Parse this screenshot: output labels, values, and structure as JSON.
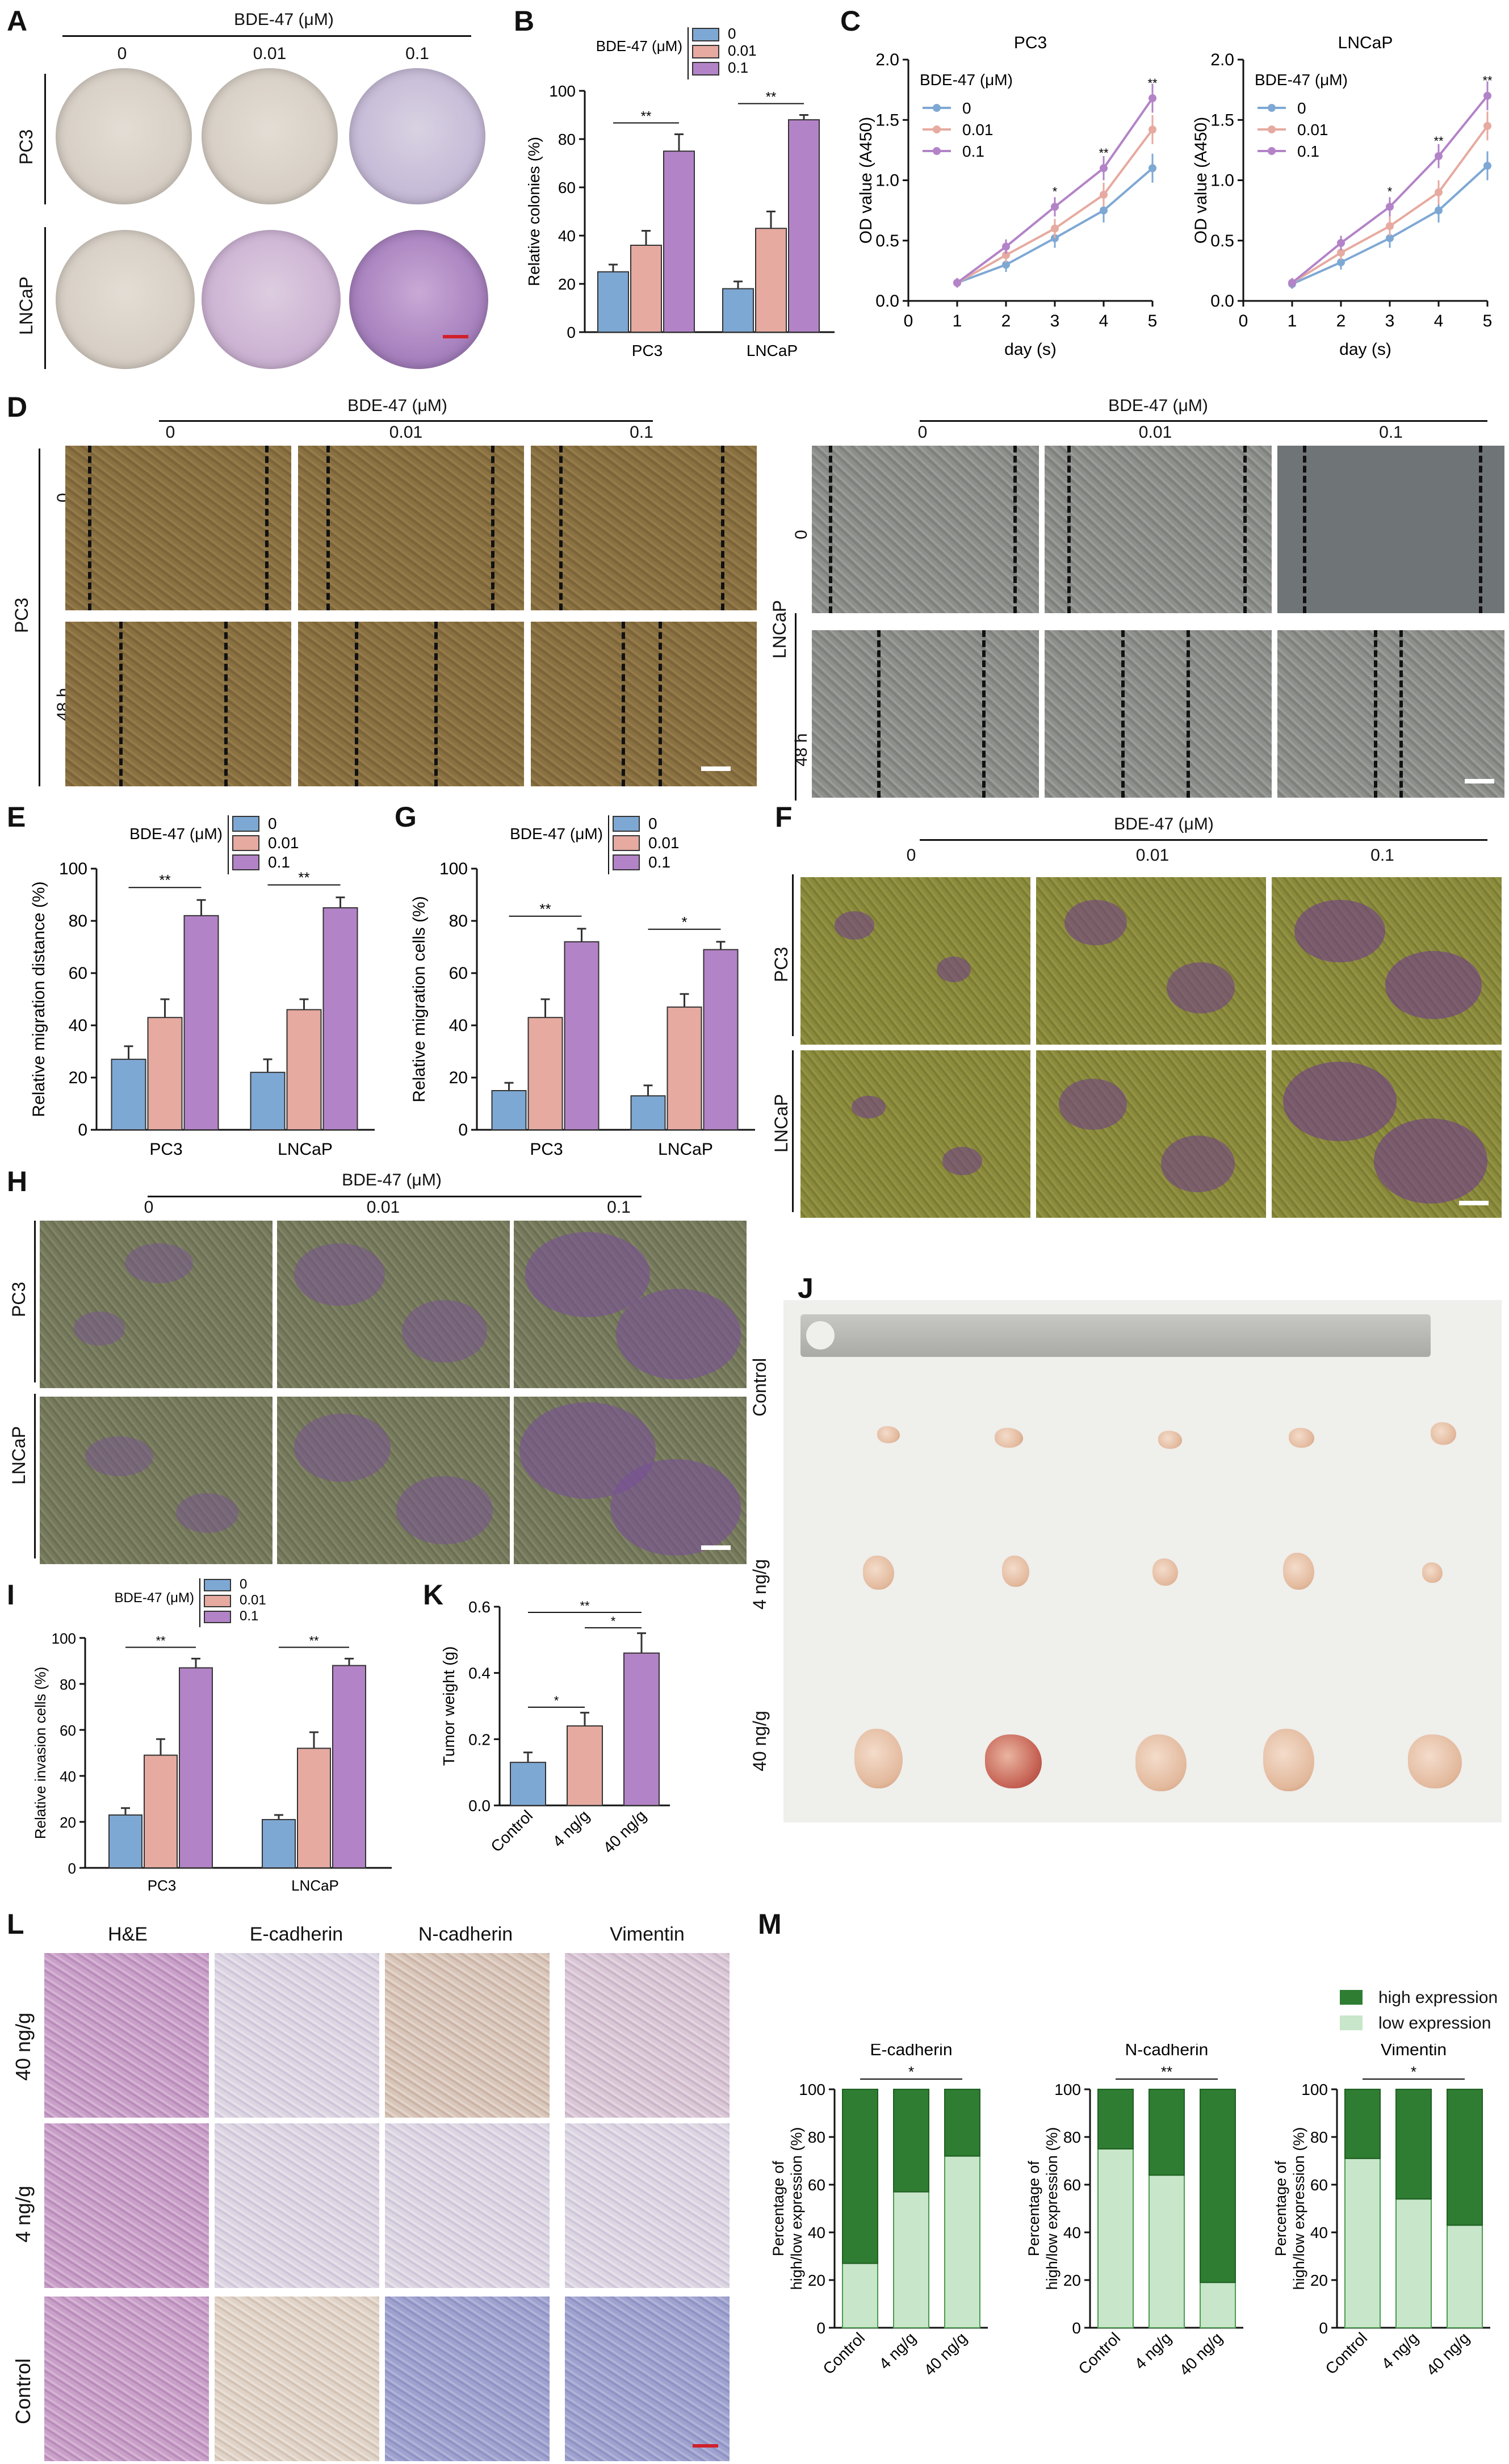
{
  "panels": {
    "A": {
      "letter": "A",
      "header": "BDE-47 (μM)",
      "conc": [
        "0",
        "0.01",
        "0.1"
      ],
      "rows": [
        "PC3",
        "LNCaP"
      ]
    },
    "B": {
      "letter": "B",
      "legend_title": "BDE-47 (μM)",
      "legend": [
        "0",
        "0.01",
        "0.1"
      ],
      "ylabel": "Relative colonies (%)",
      "sig": [
        "**",
        "**"
      ]
    },
    "C": {
      "letter": "C",
      "titles": [
        "PC3",
        "LNCaP"
      ],
      "legend_title": "BDE-47 (μM)",
      "legend": [
        "0",
        "0.01",
        "0.1"
      ],
      "ylabel": "OD value (A450)",
      "xlabel": "day (s)"
    },
    "D": {
      "letter": "D",
      "header": "BDE-47 (μM)",
      "conc": [
        "0",
        "0.01",
        "0.1"
      ],
      "left_row": "PC3",
      "right_row": "LNCaP",
      "times": [
        "0",
        "48 h"
      ]
    },
    "E": {
      "letter": "E",
      "legend_title": "BDE-47 (μM)",
      "legend": [
        "0",
        "0.01",
        "0.1"
      ],
      "ylabel": "Relative migration distance (%)",
      "sig": [
        "**",
        "**"
      ]
    },
    "G": {
      "letter": "G",
      "legend_title": "BDE-47 (μM)",
      "legend": [
        "0",
        "0.01",
        "0.1"
      ],
      "ylabel": "Relative migration cells (%)",
      "sig": [
        "**",
        "*"
      ]
    },
    "F": {
      "letter": "F",
      "header": "BDE-47 (μM)",
      "conc": [
        "0",
        "0.01",
        "0.1"
      ],
      "rows": [
        "PC3",
        "LNCaP"
      ]
    },
    "H": {
      "letter": "H",
      "header": "BDE-47 (μM)",
      "conc": [
        "0",
        "0.01",
        "0.1"
      ],
      "rows": [
        "PC3",
        "LNCaP"
      ]
    },
    "I": {
      "letter": "I",
      "legend_title": "BDE-47 (μM)",
      "legend": [
        "0",
        "0.01",
        "0.1"
      ],
      "ylabel": "Relative invasion cells (%)",
      "sig": [
        "**",
        "**"
      ]
    },
    "K": {
      "letter": "K",
      "ylabel": "Tumor weight (g)",
      "sig": [
        "**",
        "*",
        "*"
      ]
    },
    "J": {
      "letter": "J",
      "rows": [
        "Control",
        "4 ng/g",
        "40 ng/g"
      ]
    },
    "L": {
      "letter": "L",
      "cols": [
        "H&E",
        "E-cadherin",
        "N-cadherin",
        "Vimentin"
      ],
      "rows": [
        "40 ng/g",
        "4 ng/g",
        "Control"
      ]
    },
    "M": {
      "letter": "M",
      "legend": [
        "high expression",
        "low expression"
      ],
      "titles": [
        "E-cadherin",
        "N-cadherin",
        "Vimentin"
      ],
      "ylabel": "Percentage of high/low expression (%)",
      "sig": [
        "*",
        "**",
        "*"
      ]
    }
  },
  "colors": {
    "c0": "#7ea8d4",
    "c1": "#e6aaa0",
    "c2": "#b383c7",
    "high": "#2e7d32",
    "low": "#c8e6c9"
  },
  "chart_data": [
    {
      "id": "B",
      "type": "bar",
      "categories": [
        "PC3",
        "LNCaP"
      ],
      "series": [
        {
          "name": "0",
          "values": [
            25,
            18
          ],
          "err": [
            3,
            3
          ]
        },
        {
          "name": "0.01",
          "values": [
            36,
            43
          ],
          "err": [
            6,
            7
          ]
        },
        {
          "name": "0.1",
          "values": [
            75,
            88
          ],
          "err": [
            7,
            2
          ]
        }
      ],
      "ylabel": "Relative colonies (%)",
      "ylim": [
        0,
        100
      ],
      "yticks": [
        0,
        20,
        40,
        60,
        80,
        100
      ]
    },
    {
      "id": "C1",
      "type": "line",
      "title": "PC3",
      "x": [
        1,
        2,
        3,
        4,
        5
      ],
      "series": [
        {
          "name": "0",
          "values": [
            0.15,
            0.3,
            0.52,
            0.75,
            1.1
          ]
        },
        {
          "name": "0.01",
          "values": [
            0.15,
            0.38,
            0.6,
            0.88,
            1.42
          ]
        },
        {
          "name": "0.1",
          "values": [
            0.15,
            0.45,
            0.78,
            1.1,
            1.68
          ]
        }
      ],
      "xlabel": "day (s)",
      "ylabel": "OD value (A450)",
      "xlim": [
        0,
        5
      ],
      "ylim": [
        0,
        2.0
      ],
      "sig": [
        "*",
        "**",
        "**"
      ]
    },
    {
      "id": "C2",
      "type": "line",
      "title": "LNCaP",
      "x": [
        1,
        2,
        3,
        4,
        5
      ],
      "series": [
        {
          "name": "0",
          "values": [
            0.14,
            0.32,
            0.52,
            0.75,
            1.12
          ]
        },
        {
          "name": "0.01",
          "values": [
            0.15,
            0.4,
            0.62,
            0.9,
            1.45
          ]
        },
        {
          "name": "0.1",
          "values": [
            0.15,
            0.48,
            0.78,
            1.2,
            1.7
          ]
        }
      ],
      "xlabel": "day (s)",
      "ylabel": "OD value (A450)",
      "xlim": [
        0,
        5
      ],
      "ylim": [
        0,
        2.0
      ],
      "sig": [
        "*",
        "**",
        "**"
      ]
    },
    {
      "id": "E",
      "type": "bar",
      "categories": [
        "PC3",
        "LNCaP"
      ],
      "series": [
        {
          "name": "0",
          "values": [
            27,
            22
          ],
          "err": [
            5,
            5
          ]
        },
        {
          "name": "0.01",
          "values": [
            43,
            46
          ],
          "err": [
            7,
            4
          ]
        },
        {
          "name": "0.1",
          "values": [
            82,
            85
          ],
          "err": [
            6,
            4
          ]
        }
      ],
      "ylabel": "Relative migration distance (%)",
      "ylim": [
        0,
        100
      ],
      "yticks": [
        0,
        20,
        40,
        60,
        80,
        100
      ]
    },
    {
      "id": "G",
      "type": "bar",
      "categories": [
        "PC3",
        "LNCaP"
      ],
      "series": [
        {
          "name": "0",
          "values": [
            15,
            13
          ],
          "err": [
            3,
            4
          ]
        },
        {
          "name": "0.01",
          "values": [
            43,
            47
          ],
          "err": [
            7,
            5
          ]
        },
        {
          "name": "0.1",
          "values": [
            72,
            69
          ],
          "err": [
            5,
            3
          ]
        }
      ],
      "ylabel": "Relative migration cells (%)",
      "ylim": [
        0,
        100
      ],
      "yticks": [
        0,
        20,
        40,
        60,
        80,
        100
      ]
    },
    {
      "id": "I",
      "type": "bar",
      "categories": [
        "PC3",
        "LNCaP"
      ],
      "series": [
        {
          "name": "0",
          "values": [
            23,
            21
          ],
          "err": [
            3,
            2
          ]
        },
        {
          "name": "0.01",
          "values": [
            49,
            52
          ],
          "err": [
            7,
            7
          ]
        },
        {
          "name": "0.1",
          "values": [
            87,
            88
          ],
          "err": [
            4,
            3
          ]
        }
      ],
      "ylabel": "Relative invasion cells (%)",
      "ylim": [
        0,
        100
      ],
      "yticks": [
        0,
        20,
        40,
        60,
        80,
        100
      ]
    },
    {
      "id": "K",
      "type": "bar",
      "categories": [
        "Control",
        "4 ng/g",
        "40 ng/g"
      ],
      "values": [
        0.13,
        0.24,
        0.46
      ],
      "err": [
        0.03,
        0.04,
        0.06
      ],
      "ylabel": "Tumor weight (g)",
      "ylim": [
        0,
        0.6
      ],
      "yticks": [
        0.0,
        0.2,
        0.4,
        0.6
      ]
    },
    {
      "id": "M1",
      "type": "bar",
      "stacked": true,
      "title": "E-cadherin",
      "categories": [
        "Control",
        "4 ng/g",
        "40 ng/g"
      ],
      "series": [
        {
          "name": "low expression",
          "values": [
            27,
            57,
            72
          ]
        },
        {
          "name": "high expression",
          "values": [
            73,
            43,
            28
          ]
        }
      ],
      "ylim": [
        0,
        100
      ],
      "yticks": [
        0,
        20,
        40,
        60,
        80,
        100
      ]
    },
    {
      "id": "M2",
      "type": "bar",
      "stacked": true,
      "title": "N-cadherin",
      "categories": [
        "Control",
        "4 ng/g",
        "40 ng/g"
      ],
      "series": [
        {
          "name": "low expression",
          "values": [
            75,
            64,
            19
          ]
        },
        {
          "name": "high expression",
          "values": [
            25,
            36,
            81
          ]
        }
      ],
      "ylim": [
        0,
        100
      ],
      "yticks": [
        0,
        20,
        40,
        60,
        80,
        100
      ]
    },
    {
      "id": "M3",
      "type": "bar",
      "stacked": true,
      "title": "Vimentin",
      "categories": [
        "Control",
        "4 ng/g",
        "40 ng/g"
      ],
      "series": [
        {
          "name": "low expression",
          "values": [
            71,
            54,
            43
          ]
        },
        {
          "name": "high expression",
          "values": [
            29,
            46,
            57
          ]
        }
      ],
      "ylim": [
        0,
        100
      ],
      "yticks": [
        0,
        20,
        40,
        60,
        80,
        100
      ]
    }
  ]
}
